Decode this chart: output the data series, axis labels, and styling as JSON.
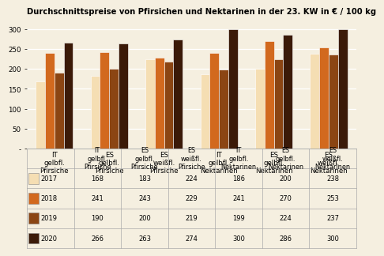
{
  "title": "Durchschnittspreise von Pfirsichen und Nektarinen in der 23. KW in € / 100 kg",
  "categories": [
    "IT\ngelbfl.\nPfirsiche",
    "ES\ngelbfl.\nPfirsiche",
    "ES\nweißfl.\nPfirsiche",
    "IT\ngelbfl.\nNektarinen",
    "ES\ngelbfl.\nNektarinen",
    "ES\nweißfl.\nNektarinen"
  ],
  "years": [
    "2017",
    "2018",
    "2019",
    "2020"
  ],
  "values": {
    "2017": [
      168,
      183,
      224,
      186,
      200,
      238
    ],
    "2018": [
      241,
      243,
      229,
      241,
      270,
      253
    ],
    "2019": [
      190,
      200,
      219,
      199,
      224,
      237
    ],
    "2020": [
      266,
      263,
      274,
      300,
      286,
      300
    ]
  },
  "colors": {
    "2017": "#F5DEB3",
    "2018": "#D2691E",
    "2019": "#8B4513",
    "2020": "#3B1A08"
  },
  "ylim": [
    0,
    325
  ],
  "yticks": [
    0,
    50,
    100,
    150,
    200,
    250,
    300
  ],
  "background_color": "#F5EFE0",
  "title_fontsize": 7.2,
  "tick_fontsize": 6.2,
  "table_fontsize": 6.0,
  "bar_width": 0.17
}
